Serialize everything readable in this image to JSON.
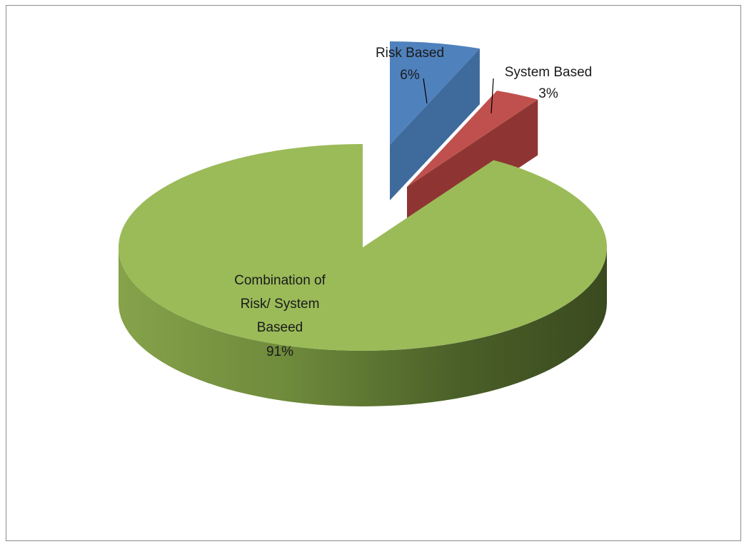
{
  "chart_data": {
    "type": "pie",
    "title": "",
    "slices": [
      {
        "name": "Risk Based",
        "value": 6,
        "value_label": "6%",
        "label_lines": [
          "Risk Based"
        ],
        "color": "#4f81bd",
        "exploded": true
      },
      {
        "name": "System Based",
        "value": 3,
        "value_label": "3%",
        "label_lines": [
          "System Based"
        ],
        "color": "#c0504d",
        "exploded": true
      },
      {
        "name": "Combination of Risk/ System Baseed",
        "value": 91,
        "value_label": "91%",
        "label_lines": [
          "Combination of",
          "Risk/ System",
          "Baseed"
        ],
        "color": "#9bbb59",
        "exploded": false
      }
    ],
    "style": "3d-exploded",
    "legend": "none"
  }
}
